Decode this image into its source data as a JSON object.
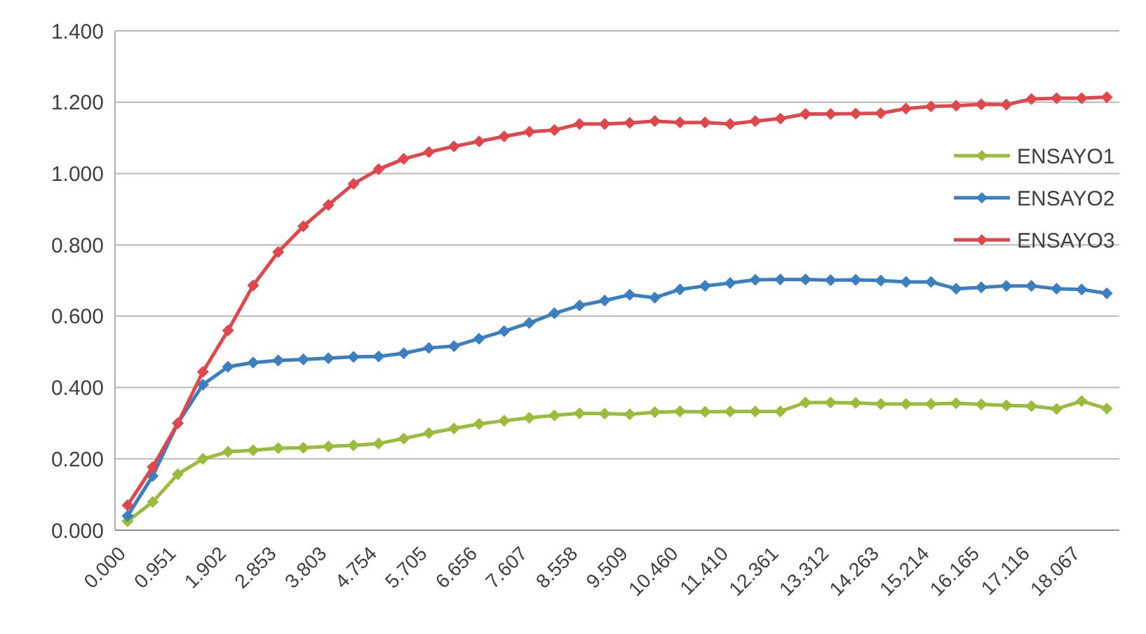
{
  "chart_data": {
    "type": "line",
    "categories": [
      "0.000",
      null,
      "0.951",
      null,
      "1.902",
      null,
      "2.853",
      null,
      "3.803",
      null,
      "4.754",
      null,
      "5.705",
      null,
      "6.656",
      null,
      "7.607",
      null,
      "8.558",
      null,
      "9.509",
      null,
      "10.460",
      null,
      "11.410",
      null,
      "12.361",
      null,
      "13.312",
      null,
      "14.263",
      null,
      "15.214",
      null,
      "16.165",
      null,
      "17.116",
      null,
      "18.067",
      null
    ],
    "series": [
      {
        "name": "ENSAYO1",
        "color": "#9bbb3b",
        "values": [
          0.025,
          0.079,
          0.157,
          0.2,
          0.22,
          0.224,
          0.23,
          0.231,
          0.235,
          0.238,
          0.243,
          0.257,
          0.272,
          0.285,
          0.298,
          0.307,
          0.315,
          0.322,
          0.328,
          0.327,
          0.325,
          0.331,
          0.333,
          0.332,
          0.333,
          0.333,
          0.333,
          0.358,
          0.358,
          0.357,
          0.354,
          0.354,
          0.354,
          0.356,
          0.353,
          0.35,
          0.348,
          0.34,
          0.362,
          0.341
        ]
      },
      {
        "name": "ENSAYO2",
        "color": "#3a7fc0",
        "values": [
          0.04,
          0.152,
          0.3,
          0.408,
          0.458,
          0.47,
          0.476,
          0.479,
          0.482,
          0.486,
          0.487,
          0.496,
          0.511,
          0.516,
          0.537,
          0.558,
          0.581,
          0.608,
          0.63,
          0.644,
          0.66,
          0.652,
          0.675,
          0.685,
          0.693,
          0.702,
          0.703,
          0.703,
          0.701,
          0.702,
          0.7,
          0.696,
          0.696,
          0.677,
          0.681,
          0.685,
          0.685,
          0.677,
          0.675,
          0.664
        ]
      },
      {
        "name": "ENSAYO3",
        "color": "#e0474c",
        "values": [
          0.07,
          0.177,
          0.3,
          0.444,
          0.56,
          0.686,
          0.78,
          0.852,
          0.912,
          0.971,
          1.012,
          1.041,
          1.06,
          1.076,
          1.09,
          1.104,
          1.117,
          1.122,
          1.139,
          1.139,
          1.142,
          1.147,
          1.143,
          1.143,
          1.139,
          1.147,
          1.154,
          1.167,
          1.167,
          1.168,
          1.169,
          1.182,
          1.188,
          1.19,
          1.194,
          1.193,
          1.209,
          1.211,
          1.211,
          1.214
        ]
      }
    ],
    "ylim": [
      0,
      1.4
    ],
    "yticks": [
      {
        "value": 0,
        "label": "0.000"
      },
      {
        "value": 0.2,
        "label": "0.200"
      },
      {
        "value": 0.4,
        "label": "0.400"
      },
      {
        "value": 0.6,
        "label": "0.600"
      },
      {
        "value": 0.8,
        "label": "0.800"
      },
      {
        "value": 1.0,
        "label": "1.000"
      },
      {
        "value": 1.2,
        "label": "1.200"
      },
      {
        "value": 1.4,
        "label": "1.400"
      }
    ],
    "grid": "y",
    "legend": "right",
    "marker": "diamond",
    "line_style": "solid"
  }
}
